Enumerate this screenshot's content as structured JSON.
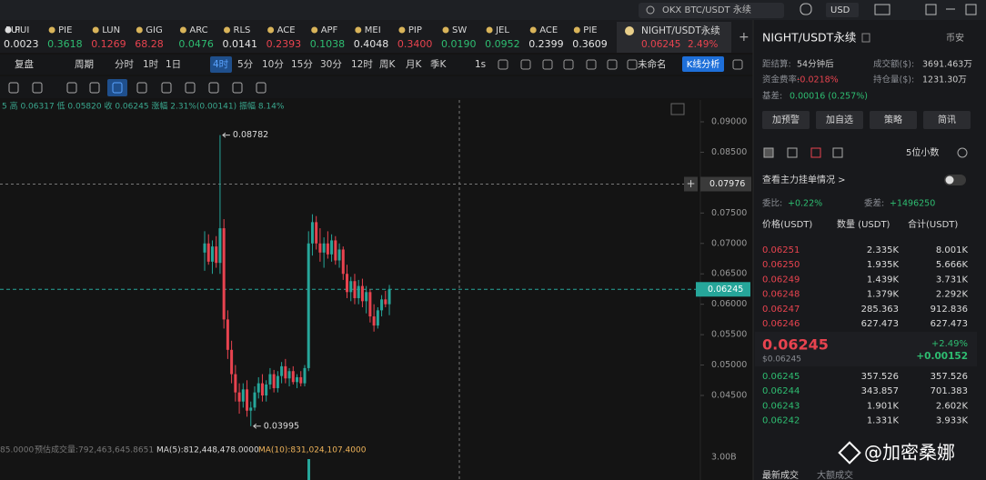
{
  "top_bar": {
    "search": "OKX BTC/USDT 永续",
    "currency": "USD"
  },
  "tickers": [
    {
      "name": "PUI",
      "price": "0.0023",
      "color": "#e6e6e6"
    },
    {
      "name": "PIE",
      "price": "0.3618",
      "color": "#2ebd71"
    },
    {
      "name": "LUN",
      "price": "0.1269",
      "color": "#e8434f"
    },
    {
      "name": "GIG",
      "price": "68.28",
      "color": "#e8434f"
    },
    {
      "name": "ARC",
      "price": "0.0476",
      "color": "#2ebd71"
    },
    {
      "name": "RLS",
      "price": "0.0141",
      "color": "#e6e6e6"
    },
    {
      "name": "ACE",
      "price": "0.2393",
      "color": "#e8434f"
    },
    {
      "name": "APF",
      "price": "0.1038",
      "color": "#2ebd71"
    },
    {
      "name": "MEI",
      "price": "0.4048",
      "color": "#e6e6e6"
    },
    {
      "name": "PIP",
      "price": "0.3400",
      "color": "#e8434f"
    },
    {
      "name": "SW",
      "price": "0.0190",
      "color": "#2ebd71"
    },
    {
      "name": "JEL",
      "price": "0.0952",
      "color": "#2ebd71"
    },
    {
      "name": "ACE",
      "price": "0.2399",
      "color": "#e6e6e6"
    },
    {
      "name": "PIE",
      "price": "0.3609",
      "color": "#e6e6e6"
    }
  ],
  "active_tab": {
    "symbol": "NIGHT/USDT永续",
    "price": "0.06245",
    "change": "2.49%"
  },
  "toolbar": {
    "replay": "复盘",
    "period": "周期",
    "intervals": [
      "分时",
      "1时",
      "1日",
      "4时",
      "5分",
      "10分",
      "15分",
      "30分",
      "12时",
      "周K",
      "月K",
      "季K"
    ],
    "active_interval": 3,
    "seconds": "1s",
    "layout": "未命名",
    "analysis": "K线分析"
  },
  "ohlc_line": "5 高 0.06317 低 0.05820 收 0.06245 涨幅 2.31%(0.00141) 振幅 8.14%",
  "chart": {
    "price_ticks": [
      {
        "value": 0.09,
        "label": "0.09000"
      },
      {
        "value": 0.085,
        "label": "0.08500"
      },
      {
        "value": 0.075,
        "label": "0.07500"
      },
      {
        "value": 0.07,
        "label": "0.07000"
      },
      {
        "value": 0.065,
        "label": "0.06500"
      },
      {
        "value": 0.06,
        "label": "0.06000"
      },
      {
        "value": 0.055,
        "label": "0.05500"
      },
      {
        "value": 0.05,
        "label": "0.05000"
      },
      {
        "value": 0.045,
        "label": "0.04500"
      }
    ],
    "up_color": "#26a69a",
    "down_color": "#e8434f",
    "candles": [
      [
        0.0685,
        0.072,
        0.0655,
        0.07
      ],
      [
        0.07,
        0.0715,
        0.0665,
        0.067
      ],
      [
        0.067,
        0.0705,
        0.065,
        0.0695
      ],
      [
        0.0695,
        0.0712,
        0.066,
        0.0668
      ],
      [
        0.0668,
        0.08782,
        0.065,
        0.0725
      ],
      [
        0.0725,
        0.074,
        0.056,
        0.0575
      ],
      [
        0.0575,
        0.059,
        0.051,
        0.0525
      ],
      [
        0.0525,
        0.054,
        0.047,
        0.0485
      ],
      [
        0.0485,
        0.05,
        0.044,
        0.0455
      ],
      [
        0.0455,
        0.047,
        0.042,
        0.044
      ],
      [
        0.044,
        0.047,
        0.043,
        0.046
      ],
      [
        0.046,
        0.0475,
        0.0415,
        0.0425
      ],
      [
        0.0425,
        0.044,
        0.03995,
        0.043
      ],
      [
        0.043,
        0.0465,
        0.0425,
        0.0455
      ],
      [
        0.0455,
        0.048,
        0.0445,
        0.047
      ],
      [
        0.047,
        0.0485,
        0.044,
        0.045
      ],
      [
        0.045,
        0.0475,
        0.044,
        0.0468
      ],
      [
        0.0468,
        0.0495,
        0.046,
        0.0485
      ],
      [
        0.0485,
        0.0492,
        0.0455,
        0.0462
      ],
      [
        0.0462,
        0.049,
        0.0455,
        0.0482
      ],
      [
        0.0482,
        0.0505,
        0.047,
        0.0498
      ],
      [
        0.0498,
        0.051,
        0.047,
        0.0478
      ],
      [
        0.0478,
        0.0495,
        0.0465,
        0.049
      ],
      [
        0.049,
        0.0498,
        0.0468,
        0.0472
      ],
      [
        0.0472,
        0.0485,
        0.0462,
        0.048
      ],
      [
        0.048,
        0.049,
        0.0465,
        0.047
      ],
      [
        0.047,
        0.05,
        0.0465,
        0.0495
      ],
      [
        0.0495,
        0.072,
        0.049,
        0.07
      ],
      [
        0.07,
        0.0748,
        0.068,
        0.0735
      ],
      [
        0.0735,
        0.0745,
        0.069,
        0.07
      ],
      [
        0.07,
        0.0725,
        0.067,
        0.0685
      ],
      [
        0.0685,
        0.071,
        0.066,
        0.07
      ],
      [
        0.07,
        0.072,
        0.0675,
        0.0682
      ],
      [
        0.0682,
        0.0715,
        0.067,
        0.0705
      ],
      [
        0.0705,
        0.0712,
        0.0665,
        0.0672
      ],
      [
        0.0672,
        0.07,
        0.066,
        0.069
      ],
      [
        0.069,
        0.0695,
        0.064,
        0.065
      ],
      [
        0.065,
        0.0665,
        0.061,
        0.062
      ],
      [
        0.062,
        0.0645,
        0.0605,
        0.0638
      ],
      [
        0.0638,
        0.065,
        0.06,
        0.061
      ],
      [
        0.061,
        0.064,
        0.06,
        0.063
      ],
      [
        0.063,
        0.0642,
        0.0595,
        0.0605
      ],
      [
        0.0605,
        0.063,
        0.0585,
        0.062
      ],
      [
        0.062,
        0.0625,
        0.057,
        0.058
      ],
      [
        0.058,
        0.06,
        0.0555,
        0.0565
      ],
      [
        0.0565,
        0.0595,
        0.056,
        0.059
      ],
      [
        0.059,
        0.0615,
        0.058,
        0.0608
      ],
      [
        0.0608,
        0.0622,
        0.0595,
        0.06
      ],
      [
        0.06,
        0.06317,
        0.0582,
        0.06245
      ]
    ],
    "high_marker": {
      "value": 0.08782,
      "label": "0.08782"
    },
    "low_marker": {
      "value": 0.03995,
      "label": "0.03995"
    },
    "crosshair_price": {
      "value": 0.07976,
      "label": "0.07976"
    },
    "last_price": {
      "value": 0.06245,
      "label": "0.06245"
    },
    "volume_tick": "3.00B",
    "volume_line": [
      "85.0000",
      "预估成交量:792,463,645.8651",
      "MA(5):812,448,478.0000",
      "MA(10):831,024,107.4000"
    ]
  },
  "market": {
    "symbol": "NIGHT/USDT永续",
    "exchange": "币安",
    "stats": [
      [
        "距结算:",
        "54分钟后"
      ],
      [
        "成交额($):",
        "3691.463万"
      ],
      [
        "资金费率:",
        "-0.0218%"
      ],
      [
        "持仓量($):",
        "1231.30万"
      ],
      [
        "基差:",
        "0.00016 (0.257%)"
      ]
    ],
    "buttons": [
      "加预警",
      "加自选",
      "策略",
      "简讯"
    ]
  },
  "order_book": {
    "precision": "5位小数",
    "main_orders": "查看主力挂单情况 >",
    "ratio": [
      "委比:",
      "+0.22%"
    ],
    "diff": [
      "委差:",
      "+1496250"
    ],
    "headers": [
      "价格(USDT)",
      "数量 (USDT)",
      "合计(USDT)"
    ],
    "asks": [
      [
        "0.06251",
        "2.335K",
        "8.001K"
      ],
      [
        "0.06250",
        "1.935K",
        "5.666K"
      ],
      [
        "0.06249",
        "1.439K",
        "3.731K"
      ],
      [
        "0.06248",
        "1.379K",
        "2.292K"
      ],
      [
        "0.06247",
        "285.363",
        "912.836"
      ],
      [
        "0.06246",
        "627.473",
        "627.473"
      ]
    ],
    "last_price": "0.06245",
    "last_usd": "$0.06245",
    "change_pct": "+2.49%",
    "change": "+0.00152",
    "bids": [
      [
        "0.06245",
        "357.526",
        "357.526"
      ],
      [
        "0.06244",
        "343.857",
        "701.383"
      ],
      [
        "0.06243",
        "1.901K",
        "2.602K"
      ],
      [
        "0.06242",
        "1.331K",
        "3.933K"
      ]
    ],
    "tabs": [
      "最新成交",
      "大额成交"
    ]
  },
  "watermark": "@加密桑娜"
}
